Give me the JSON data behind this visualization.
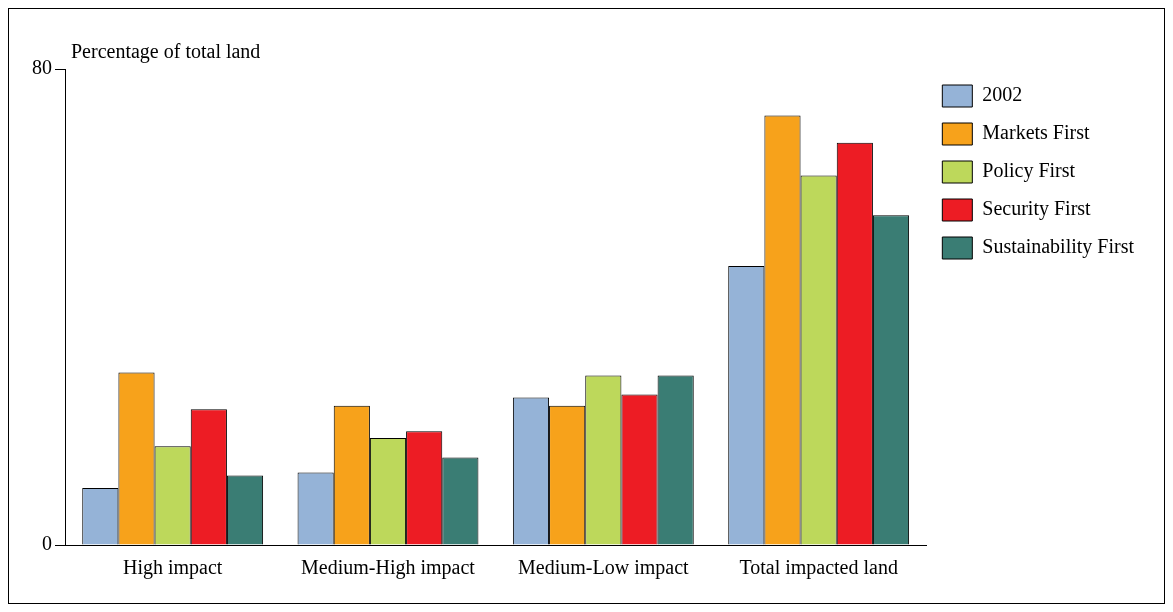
{
  "chart_data": {
    "type": "bar",
    "ylabel": "Percentage of total land",
    "categories": [
      "High impact",
      "Medium-High impact",
      "Medium-Low impact",
      "Total impacted land"
    ],
    "series": [
      {
        "name": "2002",
        "color": "#95b3d7",
        "values": [
          9.6,
          12.2,
          24.8,
          46.9
        ]
      },
      {
        "name": "Markets First",
        "color": "#f7a21b",
        "values": [
          29,
          23.4,
          23.4,
          72.2
        ]
      },
      {
        "name": "Policy First",
        "color": "#bdd85b",
        "values": [
          16.6,
          18,
          28.5,
          62.1
        ]
      },
      {
        "name": "Security First",
        "color": "#ed1c24",
        "values": [
          22.8,
          19.1,
          25.3,
          67.6
        ]
      },
      {
        "name": "Sustainability First",
        "color": "#3a7d74",
        "values": [
          11.7,
          14.7,
          28.5,
          55.4
        ]
      }
    ],
    "ylim": [
      0,
      80
    ],
    "yticks": [
      0,
      80
    ],
    "grid": false,
    "legend": "top right"
  }
}
